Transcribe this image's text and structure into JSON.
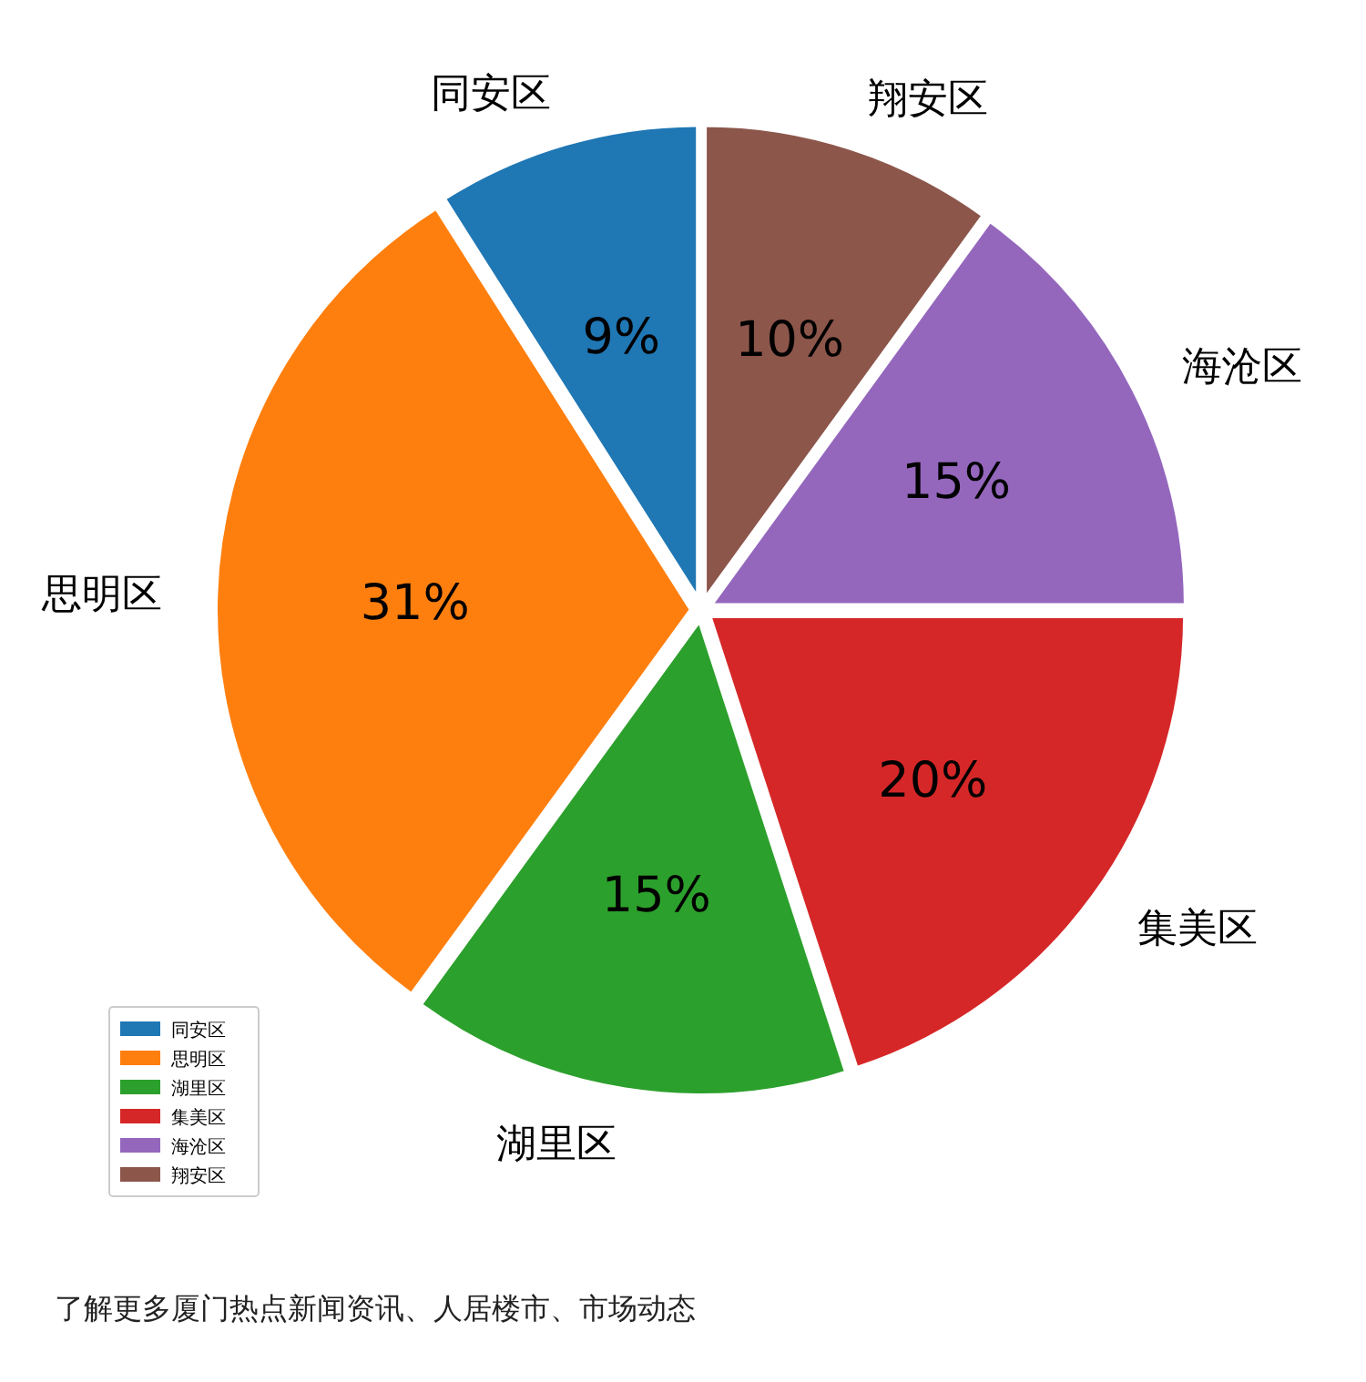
{
  "chart_data": {
    "type": "pie",
    "categories": [
      "同安区",
      "思明区",
      "湖里区",
      "集美区",
      "海沧区",
      "翔安区"
    ],
    "values": [
      9,
      31,
      15,
      20,
      15,
      10
    ],
    "colors": [
      "#1f77b4",
      "#ff7f0e",
      "#2ca02c",
      "#d62728",
      "#9467bd",
      "#8c564b"
    ],
    "value_labels": [
      "9%",
      "31%",
      "15%",
      "20%",
      "15%",
      "10%"
    ],
    "legend": "bottom left",
    "annotations": [
      "了解更多厦门热点新闻资讯、人居楼市、市场动态"
    ]
  }
}
